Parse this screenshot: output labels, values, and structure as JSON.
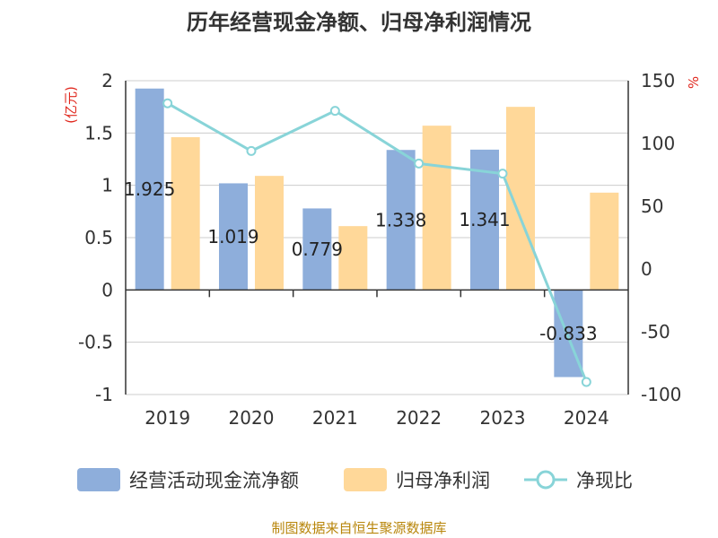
{
  "chart_data": {
    "type": "bar",
    "title": "历年经营现金净额、归母净利润情况",
    "categories": [
      "2019",
      "2020",
      "2021",
      "2022",
      "2023",
      "2024"
    ],
    "series": [
      {
        "name": "经营活动现金流净额",
        "type": "bar",
        "axis": "left",
        "color": "#8eaedb",
        "values": [
          1.925,
          1.019,
          0.779,
          1.338,
          1.341,
          -0.833
        ]
      },
      {
        "name": "归母净利润",
        "type": "bar",
        "axis": "left",
        "color": "#ffd899",
        "values": [
          1.46,
          1.09,
          0.61,
          1.57,
          1.75,
          0.93
        ]
      },
      {
        "name": "净现比",
        "type": "line",
        "axis": "right",
        "color": "#88d4d8",
        "values": [
          132,
          94,
          126,
          84,
          76,
          -90
        ]
      }
    ],
    "data_labels": [
      "1.925",
      "1.019",
      "0.779",
      "1.338",
      "1.341",
      "-0.833"
    ],
    "left_axis": {
      "unit": "(亿元)",
      "ylim": [
        -1,
        2
      ],
      "ticks": [
        {
          "v": 2,
          "t": "2"
        },
        {
          "v": 1.5,
          "t": "1.5"
        },
        {
          "v": 1,
          "t": "1"
        },
        {
          "v": 0.5,
          "t": "0.5"
        },
        {
          "v": 0,
          "t": "0"
        },
        {
          "v": -0.5,
          "t": "-0.5"
        },
        {
          "v": -1,
          "t": "-1"
        }
      ]
    },
    "right_axis": {
      "unit": "%",
      "ylim": [
        -100,
        150
      ],
      "ticks": [
        {
          "v": 150,
          "t": "150"
        },
        {
          "v": 100,
          "t": "100"
        },
        {
          "v": 50,
          "t": "50"
        },
        {
          "v": 0,
          "t": "0"
        },
        {
          "v": -50,
          "t": "-50"
        },
        {
          "v": -100,
          "t": "-100"
        }
      ]
    },
    "grid": true,
    "legend_position": "bottom"
  },
  "footer": {
    "source": "制图数据来自恒生聚源数据库"
  }
}
